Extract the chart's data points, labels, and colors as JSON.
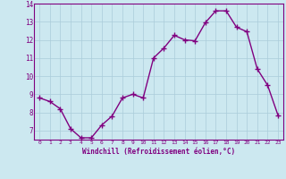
{
  "x": [
    0,
    1,
    2,
    3,
    4,
    5,
    6,
    7,
    8,
    9,
    10,
    11,
    12,
    13,
    14,
    15,
    16,
    17,
    18,
    19,
    20,
    21,
    22,
    23
  ],
  "y": [
    8.8,
    8.6,
    8.2,
    7.1,
    6.6,
    6.6,
    7.3,
    7.8,
    8.8,
    9.0,
    8.8,
    11.0,
    11.55,
    12.25,
    12.0,
    11.95,
    12.95,
    13.6,
    13.6,
    12.7,
    12.45,
    10.4,
    9.5,
    7.85
  ],
  "line_color": "#800080",
  "marker": "+",
  "marker_size": 4,
  "marker_lw": 1.0,
  "line_width": 1.0,
  "bg_color": "#cce8f0",
  "grid_color": "#aaccda",
  "xlabel": "Windchill (Refroidissement éolien,°C)",
  "xlabel_color": "#800080",
  "tick_color": "#800080",
  "spine_color": "#800080",
  "ylim": [
    6.5,
    14.0
  ],
  "xlim": [
    -0.5,
    23.5
  ],
  "yticks": [
    7,
    8,
    9,
    10,
    11,
    12,
    13,
    14
  ],
  "xticks": [
    0,
    1,
    2,
    3,
    4,
    5,
    6,
    7,
    8,
    9,
    10,
    11,
    12,
    13,
    14,
    15,
    16,
    17,
    18,
    19,
    20,
    21,
    22,
    23
  ],
  "xtick_fontsize": 4.5,
  "ytick_fontsize": 5.5,
  "xlabel_fontsize": 5.5,
  "xlabel_fontweight": "bold"
}
